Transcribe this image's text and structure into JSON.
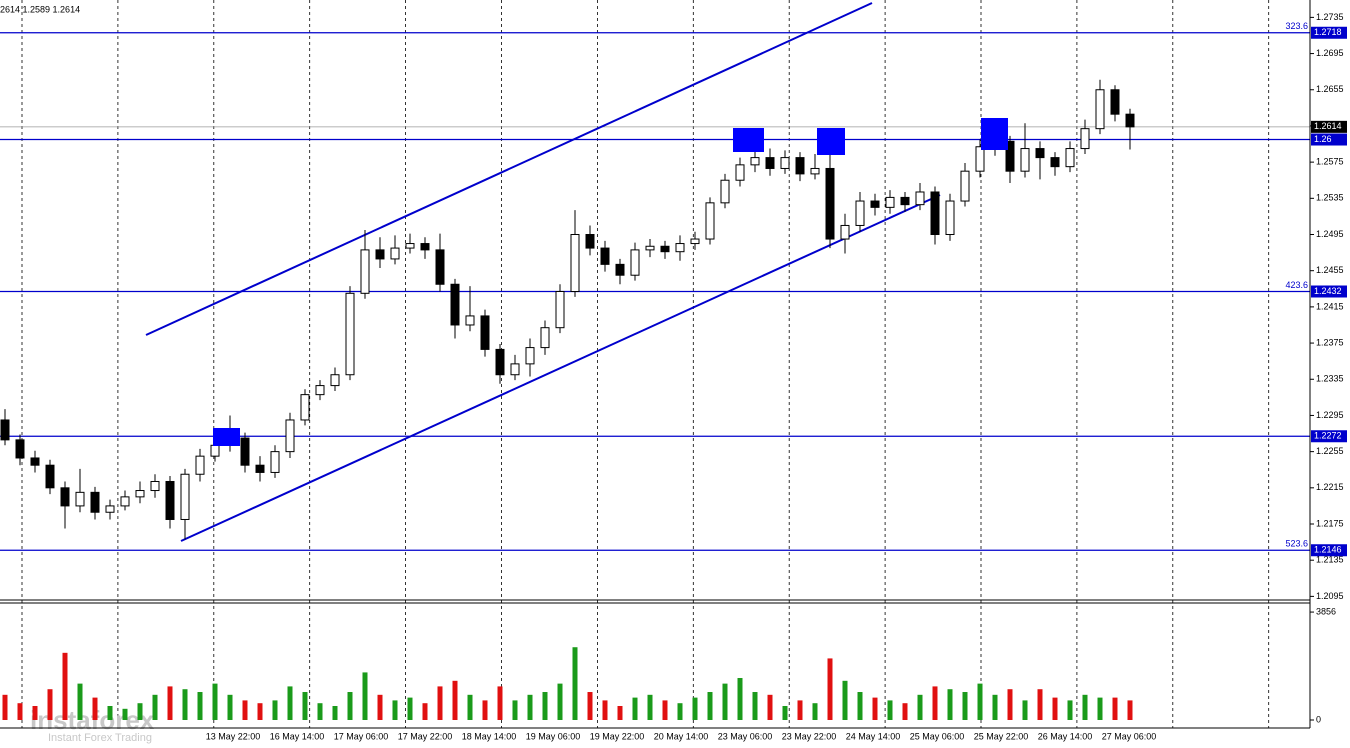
{
  "chart_data": {
    "type": "candlestick",
    "header": "2614 1.2589 1.2614",
    "watermark": "instaforex",
    "watermark_sub": "Instant Forex Trading",
    "up_color": "#ffffff",
    "down_color": "#000000",
    "vol_up_color": "#1a9a1a",
    "vol_down_color": "#e01010",
    "level_color": "#0000cc",
    "ylim": [
      1.2091,
      1.2752
    ],
    "yticks": [
      1.2735,
      1.2695,
      1.2655,
      1.2615,
      1.2575,
      1.2535,
      1.2495,
      1.2455,
      1.2415,
      1.2375,
      1.2335,
      1.2295,
      1.2255,
      1.2215,
      1.2175,
      1.2135,
      1.2095
    ],
    "x_labels": [
      "13 May 22:00",
      "16 May 14:00",
      "17 May 06:00",
      "17 May 22:00",
      "18 May 14:00",
      "19 May 06:00",
      "19 May 22:00",
      "20 May 14:00",
      "23 May 06:00",
      "23 May 22:00",
      "24 May 14:00",
      "25 May 06:00",
      "25 May 22:00",
      "26 May 14:00",
      "27 May 06:00"
    ],
    "levels": [
      {
        "price": 1.2718,
        "fib": "323.6"
      },
      {
        "price": 1.26
      },
      {
        "price": 1.2432,
        "fib": "423.6"
      },
      {
        "price": 1.2272
      },
      {
        "price": 1.2146,
        "fib": "523.6"
      }
    ],
    "last_price": 1.2614,
    "open": [
      1.229,
      1.2268,
      1.2248,
      1.224,
      1.2215,
      1.2195,
      1.221,
      1.2188,
      1.2195,
      1.2205,
      1.2212,
      1.2222,
      1.218,
      1.223,
      1.225,
      1.2262,
      1.227,
      1.224,
      1.2232,
      1.2255,
      1.229,
      1.2318,
      1.2328,
      1.234,
      1.243,
      1.2478,
      1.2468,
      1.248,
      1.2485,
      1.2478,
      1.244,
      1.2395,
      1.2405,
      1.2368,
      1.234,
      1.2352,
      1.237,
      1.2392,
      1.2432,
      1.2495,
      1.248,
      1.2462,
      1.245,
      1.2478,
      1.2482,
      1.2476,
      1.2485,
      1.249,
      1.253,
      1.2555,
      1.2572,
      1.258,
      1.2568,
      1.258,
      1.2562,
      1.2568,
      1.249,
      1.2505,
      1.2532,
      1.2525,
      1.2536,
      1.2528,
      1.2542,
      1.2495,
      1.2532,
      1.2565,
      1.2592,
      1.2598,
      1.2565,
      1.259,
      1.258,
      1.257,
      1.259,
      1.2612,
      1.2655,
      1.2628
    ],
    "high": [
      1.2302,
      1.2274,
      1.2256,
      1.2246,
      1.2222,
      1.2236,
      1.2216,
      1.2202,
      1.2212,
      1.2222,
      1.223,
      1.2228,
      1.2236,
      1.2258,
      1.227,
      1.2295,
      1.2276,
      1.225,
      1.2262,
      1.2298,
      1.2324,
      1.2334,
      1.2348,
      1.2438,
      1.25,
      1.2492,
      1.2494,
      1.2496,
      1.2492,
      1.2496,
      1.2446,
      1.2438,
      1.2412,
      1.2374,
      1.2362,
      1.238,
      1.24,
      1.244,
      1.2522,
      1.2505,
      1.2488,
      1.2468,
      1.2486,
      1.249,
      1.2488,
      1.2494,
      1.2498,
      1.2536,
      1.2562,
      1.258,
      1.26,
      1.259,
      1.2588,
      1.2586,
      1.2584,
      1.2605,
      1.2518,
      1.2542,
      1.254,
      1.2544,
      1.2542,
      1.2552,
      1.2548,
      1.254,
      1.2574,
      1.26,
      1.261,
      1.2604,
      1.2618,
      1.2598,
      1.2586,
      1.2598,
      1.2622,
      1.2666,
      1.266,
      1.2634
    ],
    "low": [
      1.2262,
      1.224,
      1.2232,
      1.2208,
      1.217,
      1.2188,
      1.218,
      1.218,
      1.219,
      1.2198,
      1.2204,
      1.217,
      1.2158,
      1.2222,
      1.2244,
      1.2255,
      1.2232,
      1.2222,
      1.2226,
      1.2248,
      1.2284,
      1.2312,
      1.2322,
      1.2334,
      1.2424,
      1.2458,
      1.2462,
      1.2474,
      1.2468,
      1.2432,
      1.238,
      1.2388,
      1.236,
      1.233,
      1.2334,
      1.2338,
      1.2362,
      1.2386,
      1.2426,
      1.2472,
      1.2454,
      1.244,
      1.2444,
      1.247,
      1.2468,
      1.2466,
      1.2478,
      1.2484,
      1.2524,
      1.2548,
      1.2564,
      1.256,
      1.2562,
      1.2554,
      1.2556,
      1.248,
      1.2474,
      1.2498,
      1.2516,
      1.2518,
      1.252,
      1.2522,
      1.2484,
      1.2488,
      1.2526,
      1.2558,
      1.2582,
      1.2552,
      1.2558,
      1.2556,
      1.256,
      1.2564,
      1.2584,
      1.2606,
      1.262,
      1.2589
    ],
    "close": [
      1.2268,
      1.2248,
      1.224,
      1.2215,
      1.2195,
      1.221,
      1.2188,
      1.2195,
      1.2205,
      1.2212,
      1.2222,
      1.218,
      1.223,
      1.225,
      1.2262,
      1.227,
      1.224,
      1.2232,
      1.2255,
      1.229,
      1.2318,
      1.2328,
      1.234,
      1.243,
      1.2478,
      1.2468,
      1.248,
      1.2485,
      1.2478,
      1.244,
      1.2395,
      1.2405,
      1.2368,
      1.234,
      1.2352,
      1.237,
      1.2392,
      1.2432,
      1.2495,
      1.248,
      1.2462,
      1.245,
      1.2478,
      1.2482,
      1.2476,
      1.2485,
      1.249,
      1.253,
      1.2555,
      1.2572,
      1.258,
      1.2568,
      1.258,
      1.2562,
      1.2568,
      1.249,
      1.2505,
      1.2532,
      1.2525,
      1.2536,
      1.2528,
      1.2542,
      1.2495,
      1.2532,
      1.2565,
      1.2592,
      1.2598,
      1.2565,
      1.259,
      1.258,
      1.257,
      1.259,
      1.2612,
      1.2655,
      1.2628,
      1.2614
    ],
    "volume": [
      900,
      600,
      500,
      1100,
      2400,
      1300,
      800,
      500,
      400,
      600,
      900,
      1200,
      1100,
      1000,
      1300,
      900,
      700,
      600,
      700,
      1200,
      1000,
      600,
      500,
      1000,
      1700,
      900,
      700,
      800,
      600,
      1200,
      1400,
      900,
      700,
      1200,
      700,
      900,
      1000,
      1300,
      2600,
      1000,
      700,
      500,
      800,
      900,
      700,
      600,
      800,
      1000,
      1300,
      1500,
      1000,
      900,
      500,
      700,
      600,
      2200,
      1400,
      1000,
      800,
      700,
      600,
      900,
      1200,
      1100,
      1000,
      1300,
      900,
      1100,
      700,
      1100,
      800,
      700,
      900,
      800,
      800,
      700
    ],
    "vol_ylim": [
      0,
      4180
    ],
    "vol_yticks": [
      3856,
      0
    ]
  }
}
